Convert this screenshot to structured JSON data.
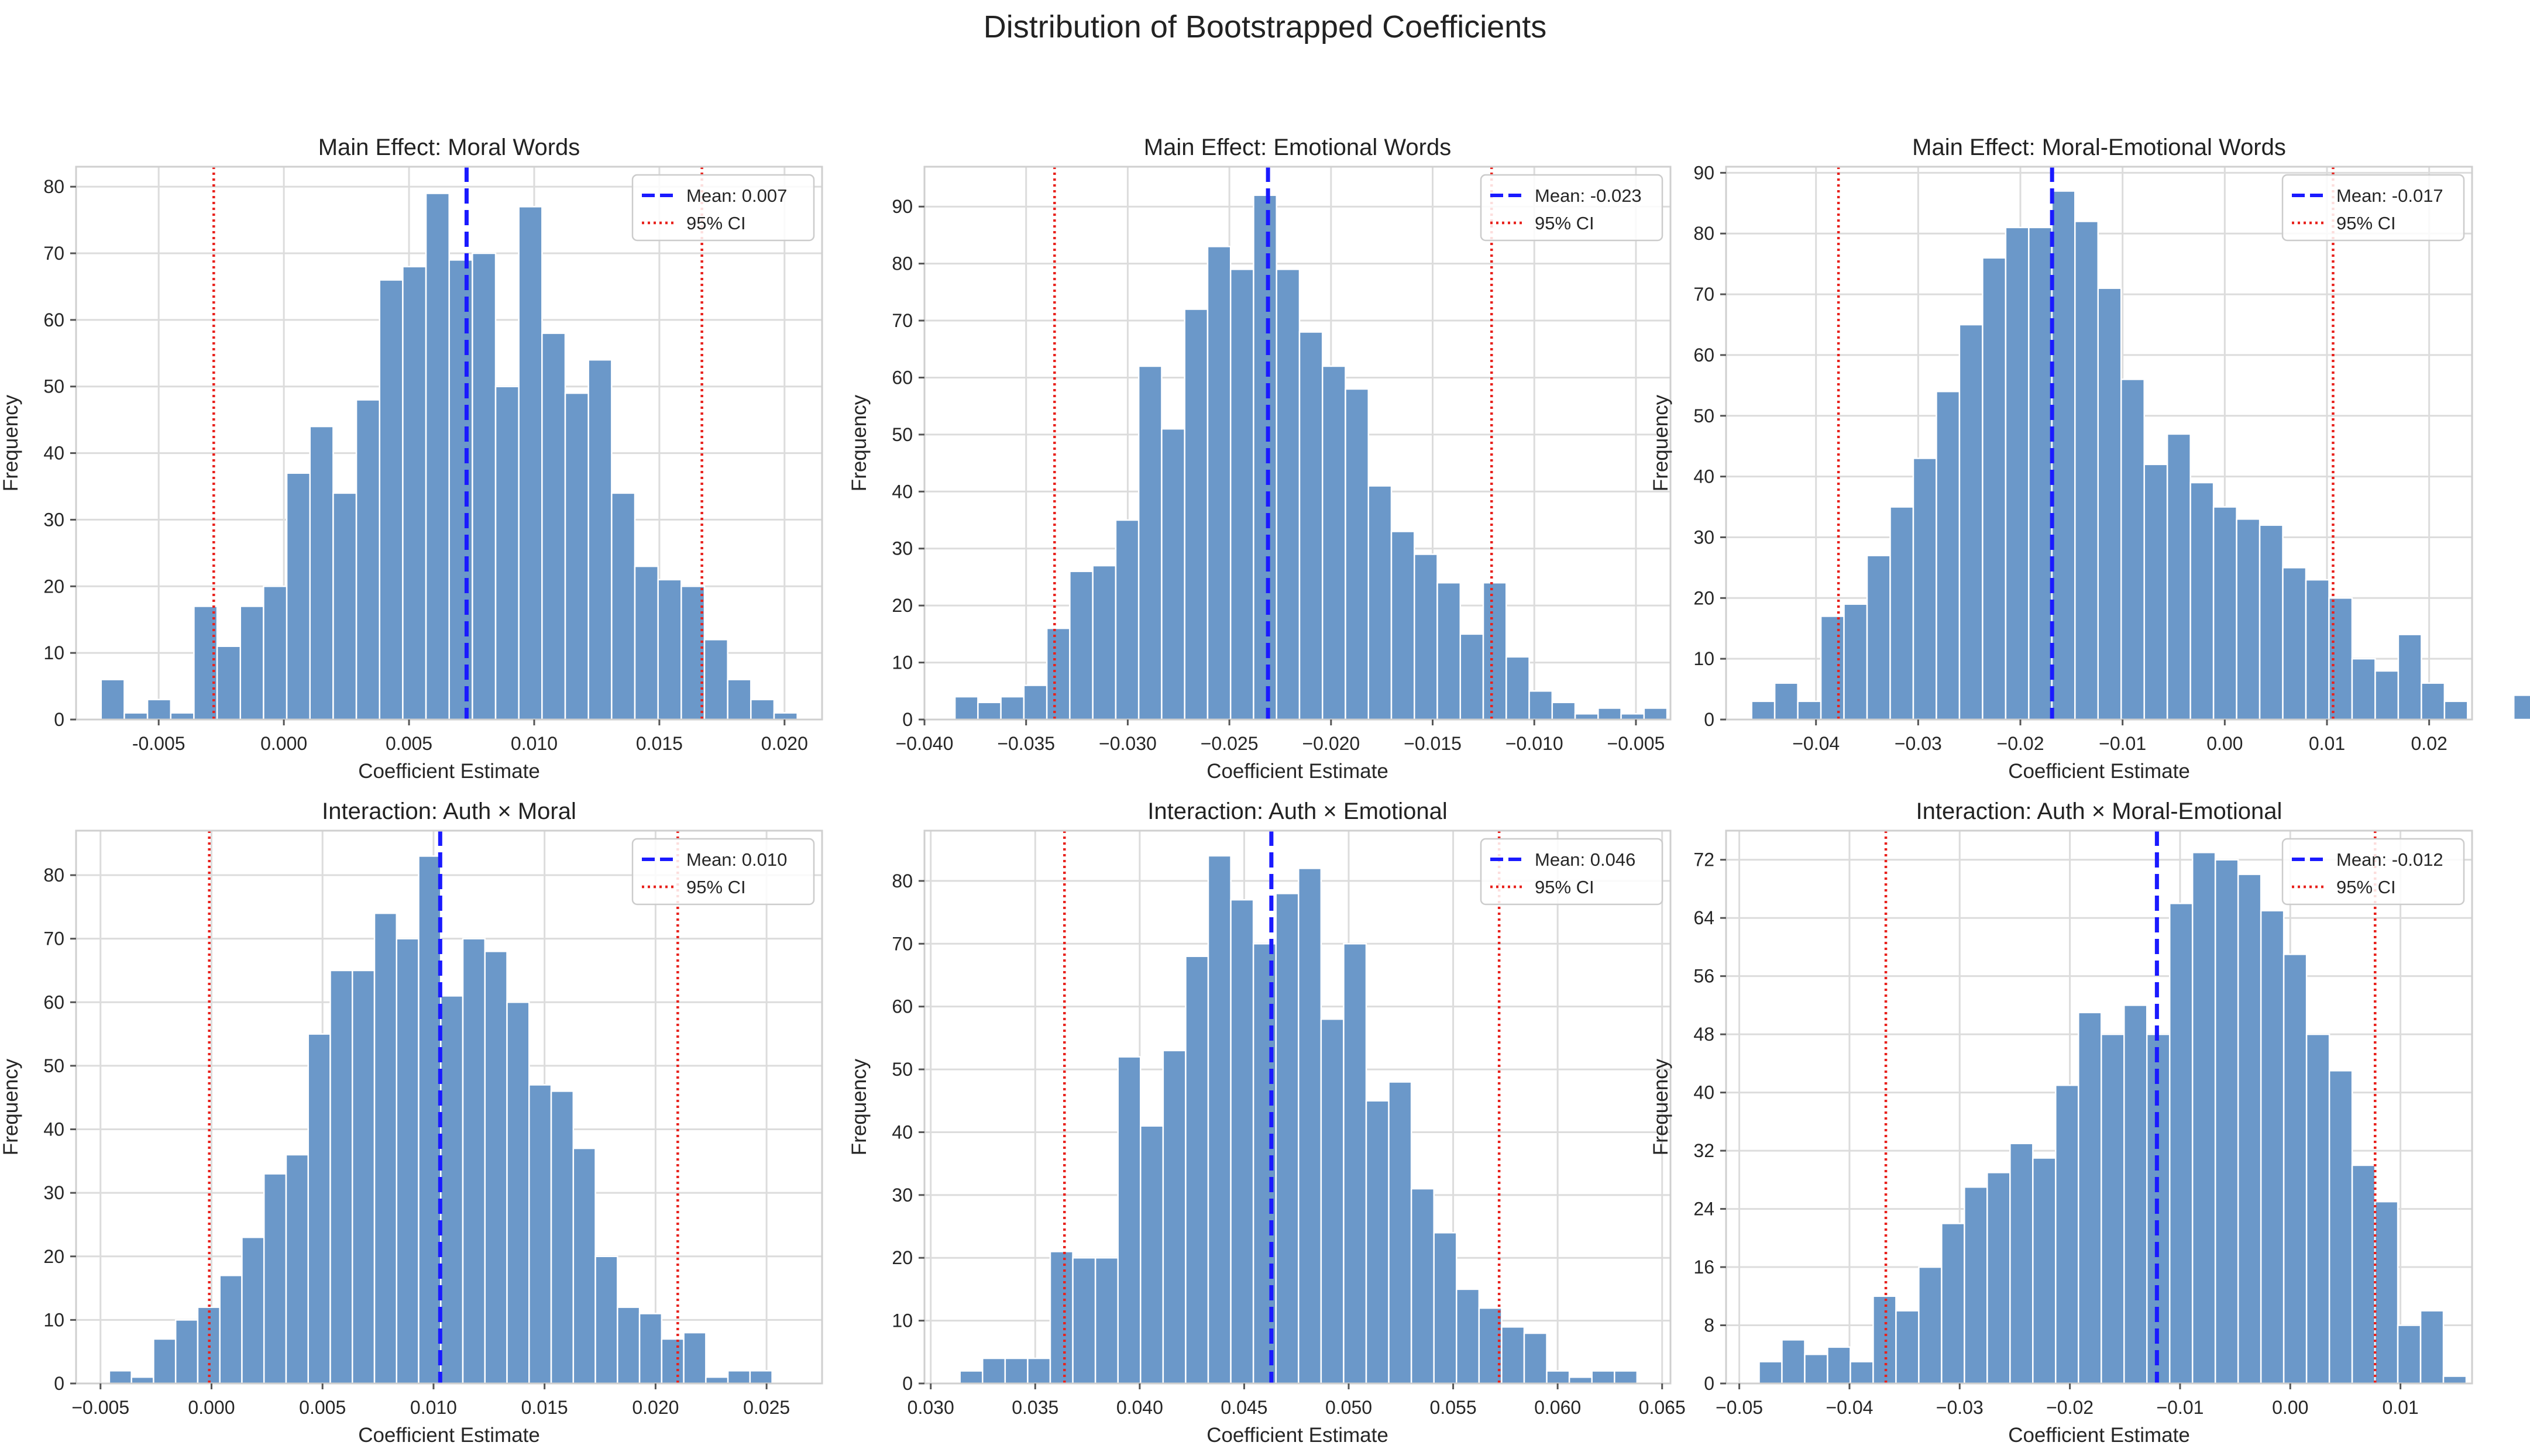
{
  "figure": {
    "title": "Distribution of Bootstrapped Coefficients"
  },
  "chart_data": [
    {
      "type": "bar",
      "title": "Main Effect: Moral Words",
      "xlabel": "Coefficient Estimate",
      "ylabel": "Frequency",
      "xlim": [
        -0.0083,
        0.0215
      ],
      "ylim": [
        0,
        83
      ],
      "xticks": [
        -0.005,
        0.0,
        0.005,
        0.01,
        0.015,
        0.02
      ],
      "xtick_labels": [
        "-0.005",
        "0.000",
        "0.005",
        "0.010",
        "0.015",
        "0.020"
      ],
      "yticks": [
        0,
        10,
        20,
        30,
        40,
        50,
        60,
        70,
        80
      ],
      "ytick_labels": [
        "0",
        "10",
        "20",
        "30",
        "40",
        "50",
        "60",
        "70",
        "80"
      ],
      "bin_start": -0.0073,
      "bin_width": 0.000927,
      "counts": [
        6,
        1,
        3,
        1,
        17,
        11,
        17,
        20,
        37,
        44,
        34,
        48,
        66,
        68,
        79,
        69,
        70,
        50,
        77,
        58,
        49,
        54,
        34,
        23,
        21,
        20,
        12,
        6,
        3,
        1
      ],
      "mean": 0.0073,
      "mean_label": "Mean: 0.007",
      "ci": [
        -0.0028,
        0.0167
      ],
      "ci_label": "95% CI",
      "legend_loc": "upper right"
    },
    {
      "type": "bar",
      "title": "Main Effect: Emotional Words",
      "xlabel": "Coefficient Estimate",
      "ylabel": "Frequency",
      "xlim": [
        -0.04,
        -0.0033
      ],
      "ylim": [
        0,
        97
      ],
      "xticks": [
        -0.04,
        -0.035,
        -0.03,
        -0.025,
        -0.02,
        -0.015,
        -0.01,
        -0.005
      ],
      "xtick_labels": [
        "−0.040",
        "−0.035",
        "−0.030",
        "−0.025",
        "−0.020",
        "−0.015",
        "−0.010",
        "−0.005"
      ],
      "yticks": [
        0,
        10,
        20,
        30,
        40,
        50,
        60,
        70,
        80,
        90
      ],
      "ytick_labels": [
        "0",
        "10",
        "20",
        "30",
        "40",
        "50",
        "60",
        "70",
        "80",
        "90"
      ],
      "bin_start": -0.0385,
      "bin_width": 0.00113,
      "counts": [
        4,
        3,
        4,
        6,
        16,
        26,
        27,
        35,
        62,
        51,
        72,
        83,
        79,
        92,
        79,
        68,
        62,
        58,
        41,
        33,
        29,
        24,
        15,
        24,
        11,
        5,
        3,
        1,
        2,
        1,
        2
      ],
      "mean": -0.0231,
      "mean_label": "Mean: -0.023",
      "ci": [
        -0.0336,
        -0.0121
      ],
      "ci_label": "95% CI",
      "legend_loc": "upper right"
    },
    {
      "type": "bar",
      "title": "Main Effect: Moral-Emotional Words",
      "xlabel": "Coefficient Estimate",
      "ylabel": "Frequency",
      "xlim": [
        -0.0488,
        0.0242
      ],
      "ylim": [
        0,
        91
      ],
      "xticks": [
        -0.04,
        -0.03,
        -0.02,
        -0.01,
        0.0,
        0.01,
        0.02
      ],
      "xtick_labels": [
        "−0.04",
        "−0.03",
        "−0.02",
        "−0.01",
        "0.00",
        "0.01",
        "0.02"
      ],
      "yticks": [
        0,
        10,
        20,
        30,
        40,
        50,
        60,
        70,
        80,
        90
      ],
      "ytick_labels": [
        "0",
        "10",
        "20",
        "30",
        "40",
        "50",
        "60",
        "70",
        "80",
        "90"
      ],
      "bin_start": -0.0463,
      "bin_width": 0.00226,
      "counts": [
        3,
        6,
        3,
        17,
        19,
        27,
        35,
        43,
        54,
        65,
        76,
        81,
        81,
        87,
        82,
        71,
        56,
        42,
        47,
        39,
        35,
        33,
        32,
        25,
        23,
        20,
        10,
        8,
        14,
        6,
        3,
        0,
        0,
        4
      ],
      "mean": -0.0169,
      "mean_label": "Mean: -0.017",
      "ci": [
        -0.0378,
        0.0106
      ],
      "ci_label": "95% CI",
      "legend_loc": "upper right"
    },
    {
      "type": "bar",
      "title": "Interaction: Auth × Moral",
      "xlabel": "Coefficient Estimate",
      "ylabel": "Frequency",
      "xlim": [
        -0.0061,
        0.0275
      ],
      "ylim": [
        0,
        87
      ],
      "xticks": [
        -0.005,
        0.0,
        0.005,
        0.01,
        0.015,
        0.02,
        0.025
      ],
      "xtick_labels": [
        "−0.005",
        "0.000",
        "0.005",
        "0.010",
        "0.015",
        "0.020",
        "0.025"
      ],
      "yticks": [
        0,
        10,
        20,
        30,
        40,
        50,
        60,
        70,
        80
      ],
      "ytick_labels": [
        "0",
        "10",
        "20",
        "30",
        "40",
        "50",
        "60",
        "70",
        "80"
      ],
      "bin_start": -0.0046,
      "bin_width": 0.000995,
      "counts": [
        2,
        1,
        7,
        10,
        12,
        17,
        23,
        33,
        36,
        55,
        65,
        65,
        74,
        70,
        83,
        61,
        70,
        68,
        60,
        47,
        46,
        37,
        20,
        12,
        11,
        7,
        8,
        1,
        2,
        2
      ],
      "mean": 0.0103,
      "mean_label": "Mean: 0.010",
      "ci": [
        -0.0001,
        0.021
      ],
      "ci_label": "95% CI",
      "legend_loc": "upper right"
    },
    {
      "type": "bar",
      "title": "Interaction: Auth × Emotional",
      "xlabel": "Coefficient Estimate",
      "ylabel": "Frequency",
      "xlim": [
        0.0297,
        0.0654
      ],
      "ylim": [
        0,
        88
      ],
      "xticks": [
        0.03,
        0.035,
        0.04,
        0.045,
        0.05,
        0.055,
        0.06,
        0.065
      ],
      "xtick_labels": [
        "0.030",
        "0.035",
        "0.040",
        "0.045",
        "0.050",
        "0.055",
        "0.060",
        "0.065"
      ],
      "yticks": [
        0,
        10,
        20,
        30,
        40,
        50,
        60,
        70,
        80
      ],
      "ytick_labels": [
        "0",
        "10",
        "20",
        "30",
        "40",
        "50",
        "60",
        "70",
        "80"
      ],
      "bin_start": 0.0314,
      "bin_width": 0.00108,
      "counts": [
        2,
        4,
        4,
        4,
        21,
        20,
        20,
        52,
        41,
        53,
        68,
        84,
        77,
        70,
        78,
        82,
        58,
        70,
        45,
        48,
        31,
        24,
        15,
        12,
        9,
        8,
        2,
        1,
        2,
        2
      ],
      "mean": 0.0463,
      "mean_label": "Mean: 0.046",
      "ci": [
        0.0364,
        0.0572
      ],
      "ci_label": "95% CI",
      "legend_loc": "upper right"
    },
    {
      "type": "bar",
      "title": "Interaction: Auth × Moral-Emotional",
      "xlabel": "Coefficient Estimate",
      "ylabel": "Frequency",
      "xlim": [
        -0.0512,
        0.0165
      ],
      "ylim": [
        0,
        76
      ],
      "xticks": [
        -0.05,
        -0.04,
        -0.03,
        -0.02,
        -0.01,
        0.0,
        0.01
      ],
      "xtick_labels": [
        "−0.05",
        "−0.04",
        "−0.03",
        "−0.02",
        "−0.01",
        "0.00",
        "0.01"
      ],
      "yticks": [
        0,
        8,
        16,
        24,
        32,
        40,
        48,
        56,
        64,
        72
      ],
      "ytick_labels": [
        "0",
        "8",
        "16",
        "24",
        "32",
        "40",
        "48",
        "56",
        "64",
        "72"
      ],
      "bin_start": -0.0482,
      "bin_width": 0.00207,
      "counts": [
        3,
        6,
        4,
        5,
        3,
        12,
        10,
        16,
        22,
        27,
        29,
        33,
        31,
        41,
        51,
        48,
        52,
        48,
        66,
        73,
        72,
        70,
        65,
        59,
        48,
        43,
        30,
        25,
        8,
        10,
        1
      ],
      "mean": -0.0121,
      "mean_label": "Mean: -0.012",
      "ci": [
        -0.0367,
        0.0077
      ],
      "ci_label": "95% CI",
      "legend_loc": "upper right"
    }
  ]
}
